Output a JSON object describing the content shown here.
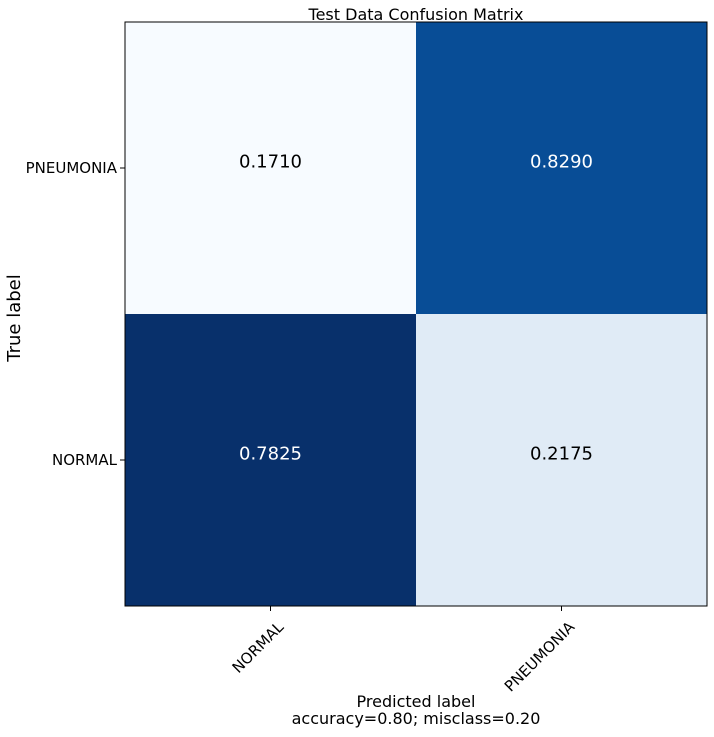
{
  "chart_data": {
    "type": "heatmap",
    "title": "Test Data Confusion Matrix",
    "xlabel": "Predicted label",
    "xlabel_sub": "accuracy=0.80; misclass=0.20",
    "ylabel": "True label",
    "x_categories": [
      "NORMAL",
      "PNEUMONIA"
    ],
    "y_categories": [
      "PNEUMONIA",
      "NORMAL"
    ],
    "values": [
      [
        0.171,
        0.829
      ],
      [
        0.7825,
        0.2175
      ]
    ],
    "value_labels": [
      [
        "0.1710",
        "0.8290"
      ],
      [
        "0.7825",
        "0.2175"
      ]
    ],
    "colormap": "Blues",
    "colors": [
      [
        "#f7fbff",
        "#084d96"
      ],
      [
        "#08306b",
        "#e0ebf6"
      ]
    ],
    "text_colors": [
      [
        "#000000",
        "#ffffff"
      ],
      [
        "#ffffff",
        "#000000"
      ]
    ]
  }
}
